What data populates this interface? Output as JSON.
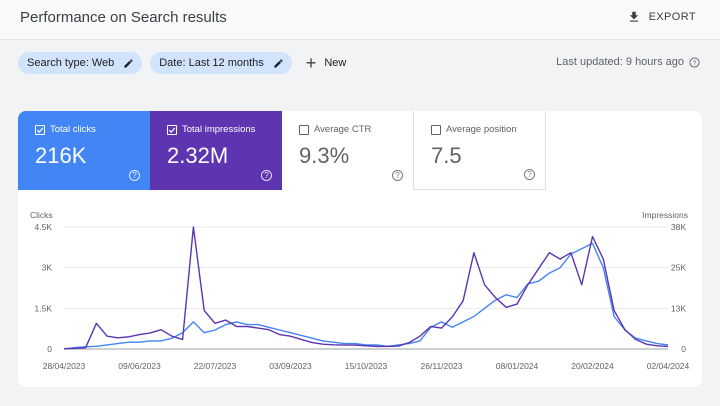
{
  "header": {
    "title": "Performance on Search results",
    "export_label": "EXPORT"
  },
  "filters": {
    "chips": [
      {
        "label": "Search type: Web"
      },
      {
        "label": "Date: Last 12 months"
      }
    ],
    "new_label": "New",
    "last_updated": "Last updated: 9 hours ago"
  },
  "metrics": {
    "clicks": {
      "label": "Total clicks",
      "value": "216K",
      "selected": true,
      "color": "#4285f4"
    },
    "impressions": {
      "label": "Total impressions",
      "value": "2.32M",
      "selected": true,
      "color": "#5e35b1"
    },
    "ctr": {
      "label": "Average CTR",
      "value": "9.3%",
      "selected": false
    },
    "position": {
      "label": "Average position",
      "value": "7.5",
      "selected": false
    }
  },
  "chart_data": {
    "type": "line",
    "left_axis_label": "Clicks",
    "right_axis_label": "Impressions",
    "left_ticks": [
      "4.5K",
      "3K",
      "1.5K",
      "0"
    ],
    "right_ticks": [
      "38K",
      "25K",
      "13K",
      "0"
    ],
    "ylim_left": [
      0,
      4500
    ],
    "ylim_right": [
      0,
      38000
    ],
    "x_tick_labels": [
      "28/04/2023",
      "09/06/2023",
      "22/07/2023",
      "03/09/2023",
      "15/10/2023",
      "26/11/2023",
      "08/01/2024",
      "20/02/2024",
      "02/04/2024"
    ],
    "x_start": "2023-04-28",
    "x_step_days": 7,
    "series": [
      {
        "name": "Clicks",
        "axis": "left",
        "color": "#4285f4",
        "values": [
          0,
          50,
          80,
          100,
          150,
          200,
          250,
          250,
          300,
          300,
          400,
          600,
          1000,
          600,
          700,
          900,
          1000,
          900,
          900,
          800,
          700,
          600,
          500,
          400,
          300,
          250,
          200,
          200,
          150,
          150,
          100,
          150,
          200,
          300,
          800,
          1000,
          800,
          1000,
          1200,
          1500,
          1800,
          2000,
          1900,
          2400,
          2500,
          2800,
          3000,
          3500,
          3700,
          3900,
          3000,
          1200,
          700,
          400,
          300,
          200,
          150
        ]
      },
      {
        "name": "Impressions",
        "axis": "right",
        "color": "#5e35b1",
        "values": [
          100,
          200,
          400,
          8000,
          4000,
          3500,
          3800,
          4500,
          5000,
          6000,
          4000,
          3000,
          38000,
          12000,
          8000,
          9000,
          7000,
          7000,
          6500,
          6000,
          4500,
          4000,
          3000,
          2000,
          1500,
          1300,
          1200,
          1200,
          1000,
          800,
          800,
          900,
          2000,
          4000,
          7000,
          6500,
          10000,
          15000,
          30000,
          20000,
          16000,
          13000,
          14000,
          20000,
          25000,
          30000,
          28000,
          30000,
          20000,
          35000,
          28000,
          12000,
          6000,
          3000,
          1500,
          1000,
          800
        ]
      }
    ]
  }
}
